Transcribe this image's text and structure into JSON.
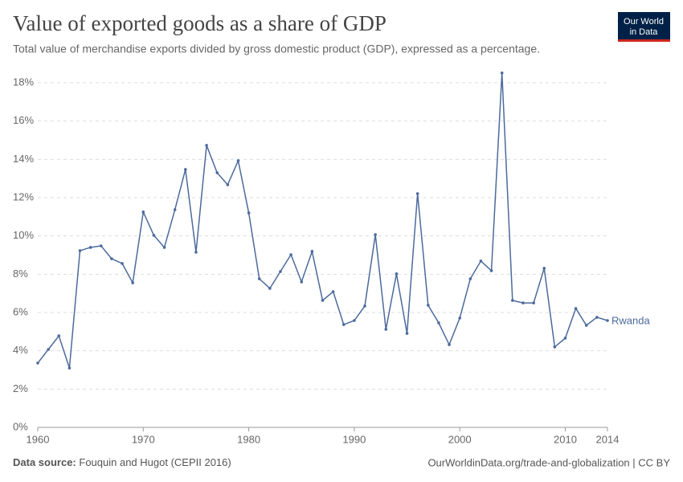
{
  "chart_data": {
    "type": "line",
    "title": "Value of exported goods as a share of GDP",
    "subtitle": "Total value of merchandise exports divided by gross domestic product (GDP), expressed as a percentage.",
    "source_label": "Data source:",
    "source": "Fouquin and Hugot (CEPII 2016)",
    "footer_right": "OurWorldinData.org/trade-and-globalization | CC BY",
    "logo": [
      "Our World",
      "in Data"
    ],
    "x": [
      1960,
      1961,
      1962,
      1963,
      1964,
      1965,
      1966,
      1967,
      1968,
      1969,
      1970,
      1971,
      1972,
      1973,
      1974,
      1975,
      1976,
      1977,
      1978,
      1979,
      1980,
      1981,
      1982,
      1983,
      1984,
      1985,
      1986,
      1987,
      1988,
      1989,
      1990,
      1991,
      1992,
      1993,
      1994,
      1995,
      1996,
      1997,
      1998,
      1999,
      2000,
      2001,
      2002,
      2003,
      2004,
      2005,
      2006,
      2007,
      2008,
      2009,
      2010,
      2011,
      2012,
      2013,
      2014
    ],
    "series": [
      {
        "name": "Rwanda",
        "color": "#4c6a9c",
        "values": [
          3.36,
          4.07,
          4.78,
          3.1,
          9.23,
          9.4,
          9.48,
          8.81,
          8.56,
          7.55,
          11.25,
          10.03,
          9.4,
          11.37,
          13.47,
          9.15,
          14.73,
          13.3,
          12.67,
          13.93,
          11.2,
          7.76,
          7.26,
          8.14,
          9.02,
          7.6,
          9.19,
          6.63,
          7.09,
          5.37,
          5.58,
          6.34,
          10.07,
          5.12,
          8.02,
          4.91,
          12.21,
          6.38,
          5.46,
          4.32,
          5.71,
          7.76,
          8.69,
          8.18,
          18.51,
          6.63,
          6.5,
          6.5,
          8.31,
          4.2,
          4.66,
          6.21,
          5.33,
          5.75,
          5.58
        ]
      }
    ],
    "xlim": [
      1960,
      2014
    ],
    "xticks": [
      1960,
      1970,
      1980,
      1990,
      2000,
      2010,
      2014
    ],
    "ylim": [
      0,
      18
    ],
    "yticks": [
      {
        "value": 0,
        "label": "0%"
      },
      {
        "value": 2,
        "label": "2%"
      },
      {
        "value": 4,
        "label": "4%"
      },
      {
        "value": 6,
        "label": "6%"
      },
      {
        "value": 8,
        "label": "8%"
      },
      {
        "value": 10,
        "label": "10%"
      },
      {
        "value": 12,
        "label": "12%"
      },
      {
        "value": 14,
        "label": "14%"
      },
      {
        "value": 16,
        "label": "16%"
      },
      {
        "value": 18,
        "label": "18%"
      }
    ],
    "grid": true
  }
}
